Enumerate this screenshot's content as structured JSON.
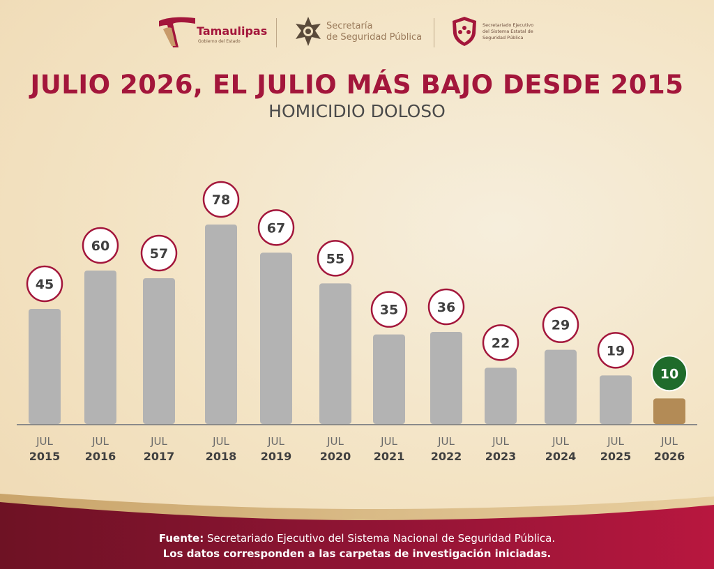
{
  "header": {
    "logo_tamaulipas": {
      "name": "Tamaulipas",
      "tagline": "Gobierno del Estado"
    },
    "logo_secretaria": {
      "line1": "Secretaría",
      "line2": "de Seguridad Pública"
    },
    "logo_secretariado": {
      "line1": "Secretariado Ejecutivo",
      "line2": "del Sistema Estatal de",
      "line3": "Seguridad Pública"
    }
  },
  "chart_data": {
    "type": "bar",
    "title": "JULIO 2026, EL JULIO MÁS BAJO DESDE 2015",
    "subtitle": "HOMICIDIO DOLOSO",
    "categories": [
      {
        "month": "JUL",
        "year": "2015"
      },
      {
        "month": "JUL",
        "year": "2016"
      },
      {
        "month": "JUL",
        "year": "2017"
      },
      {
        "month": "JUL",
        "year": "2018"
      },
      {
        "month": "JUL",
        "year": "2019"
      },
      {
        "month": "JUL",
        "year": "2020"
      },
      {
        "month": "JUL",
        "year": "2021"
      },
      {
        "month": "JUL",
        "year": "2022"
      },
      {
        "month": "JUL",
        "year": "2023"
      },
      {
        "month": "JUL",
        "year": "2024"
      },
      {
        "month": "JUL",
        "year": "2025"
      },
      {
        "month": "JUL",
        "year": "2026"
      }
    ],
    "values": [
      45,
      60,
      57,
      78,
      67,
      55,
      35,
      36,
      22,
      29,
      19,
      10
    ],
    "highlight_index": 11,
    "ylim": [
      0,
      85
    ],
    "grid": false,
    "colors": {
      "bar": "#b3b3b3",
      "highlight_bar": "#b38b56",
      "label_ring": "#a3163b",
      "highlight_label": "#1f6b2b",
      "label_text": "#3f3f3f",
      "axis": "#8a8a8a"
    }
  },
  "footer": {
    "source_label": "Fuente:",
    "source_text": " Secretariado Ejecutivo del Sistema Nacional de Seguridad Pública.",
    "note": "Los datos corresponden a las carpetas de investigación iniciadas."
  }
}
